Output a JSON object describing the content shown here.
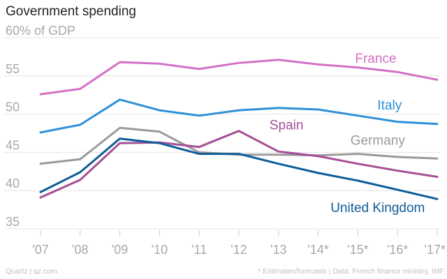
{
  "title": "Government spending",
  "footer": {
    "source_left": "Quartz | qz.com",
    "source_right": "* Estimates/forecasts | Data: French finance ministry, IMF"
  },
  "chart_data": {
    "type": "line",
    "title": "Government spending",
    "xlabel": "",
    "ylabel": "",
    "x": [
      "'07",
      "'08",
      "'09",
      "'10",
      "'11",
      "'12",
      "'13",
      "'14*",
      "'15*",
      "'16*",
      "'17*"
    ],
    "y_ticks": [
      {
        "value": 60,
        "label": "60% of GDP"
      },
      {
        "value": 55,
        "label": "55"
      },
      {
        "value": 50,
        "label": "50"
      },
      {
        "value": 45,
        "label": "45"
      },
      {
        "value": 40,
        "label": "40"
      },
      {
        "value": 35,
        "label": "35"
      }
    ],
    "ylim": [
      35,
      60
    ],
    "grid": true,
    "legend": "direct labels",
    "series": [
      {
        "name": "France",
        "color": "#d36fc6",
        "label_anchor": {
          "x_index": 8.45,
          "y": 56.7
        },
        "values": [
          52.6,
          53.3,
          56.8,
          56.6,
          55.9,
          56.7,
          57.1,
          56.5,
          56.1,
          55.5,
          54.5
        ]
      },
      {
        "name": "Italy",
        "color": "#2e90d8",
        "label_anchor": {
          "x_index": 8.8,
          "y": 50.6
        },
        "values": [
          47.6,
          48.6,
          51.9,
          50.5,
          49.8,
          50.5,
          50.8,
          50.6,
          49.8,
          49.0,
          48.7
        ]
      },
      {
        "name": "Germany",
        "color": "#9a9a9a",
        "label_anchor": {
          "x_index": 8.5,
          "y": 46.0
        },
        "values": [
          43.5,
          44.1,
          48.2,
          47.7,
          45.0,
          44.7,
          44.7,
          44.6,
          44.8,
          44.4,
          44.2
        ]
      },
      {
        "name": "Spain",
        "color": "#a54f96",
        "label_anchor": {
          "x_index": 6.2,
          "y": 48.0
        },
        "values": [
          39.1,
          41.4,
          46.2,
          46.3,
          45.7,
          47.8,
          45.1,
          44.5,
          43.5,
          42.6,
          41.8
        ]
      },
      {
        "name": "United Kingdom",
        "color": "#0d5d9a",
        "label_anchor": {
          "x_index": 8.5,
          "y": 37.2
        },
        "values": [
          39.8,
          42.4,
          46.8,
          46.2,
          44.8,
          44.8,
          43.5,
          42.3,
          41.3,
          40.1,
          38.9
        ]
      }
    ]
  }
}
